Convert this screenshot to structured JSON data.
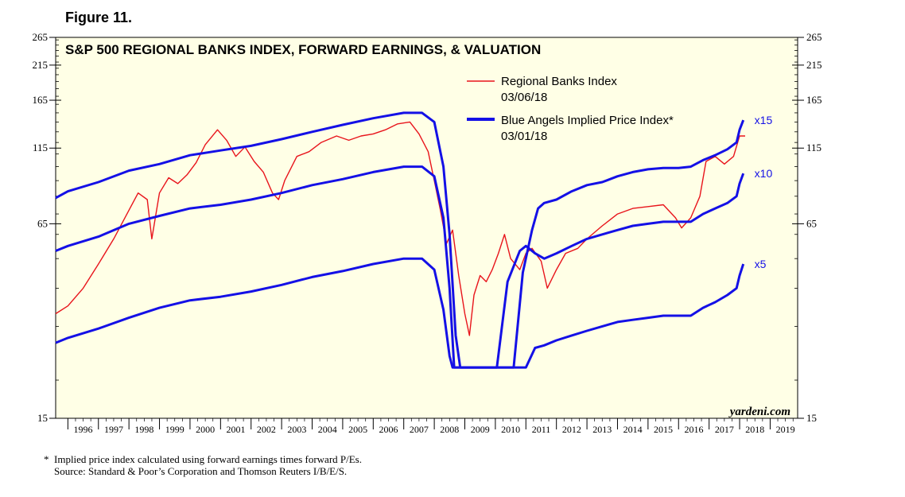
{
  "figure_label": "Figure 11.",
  "footnotes": {
    "asterisk_note": "*  Implied price index calculated using forward earnings times forward P/Es.",
    "source": "    Source: Standard & Poor’s Corporation and Thomson Reuters I/B/E/S."
  },
  "watermark": "yardeni.com",
  "colors": {
    "plot_bg": "#FFFFE6",
    "index": "#E8141B",
    "implied": "#1410E6"
  },
  "chart_data": {
    "type": "line",
    "title": "S&P 500 REGIONAL BANKS INDEX, FORWARD EARNINGS, & VALUATION",
    "y_scale": "log",
    "ylim": [
      15,
      265
    ],
    "xlim": [
      1995.6,
      2019.9
    ],
    "y_ticks": [
      15,
      65,
      115,
      165,
      215,
      265
    ],
    "x_labels": [
      "1996",
      "1997",
      "1998",
      "1999",
      "2000",
      "2001",
      "2002",
      "2003",
      "2004",
      "2005",
      "2006",
      "2007",
      "2008",
      "2009",
      "2010",
      "2011",
      "2012",
      "2013",
      "2014",
      "2015",
      "2016",
      "2017",
      "2018",
      "2019"
    ],
    "legend": {
      "placement": "top-center",
      "entries": [
        {
          "label": "Regional Banks Index",
          "date": "03/06/18"
        },
        {
          "label": "Blue Angels Implied Price Index*",
          "date": "03/01/18"
        }
      ]
    },
    "series": [
      {
        "name": "Regional Banks Index",
        "role": "index",
        "points": [
          [
            1995.6,
            33
          ],
          [
            1996.0,
            35
          ],
          [
            1996.5,
            40
          ],
          [
            1997.0,
            48
          ],
          [
            1997.5,
            58
          ],
          [
            1998.0,
            72
          ],
          [
            1998.3,
            82
          ],
          [
            1998.6,
            78
          ],
          [
            1998.75,
            58
          ],
          [
            1999.0,
            82
          ],
          [
            1999.3,
            92
          ],
          [
            1999.6,
            88
          ],
          [
            1999.9,
            94
          ],
          [
            2000.2,
            103
          ],
          [
            2000.5,
            118
          ],
          [
            2000.9,
            132
          ],
          [
            2001.2,
            122
          ],
          [
            2001.5,
            108
          ],
          [
            2001.8,
            116
          ],
          [
            2002.1,
            104
          ],
          [
            2002.4,
            96
          ],
          [
            2002.7,
            82
          ],
          [
            2002.9,
            78
          ],
          [
            2003.1,
            90
          ],
          [
            2003.5,
            108
          ],
          [
            2003.9,
            112
          ],
          [
            2004.3,
            120
          ],
          [
            2004.8,
            126
          ],
          [
            2005.2,
            122
          ],
          [
            2005.6,
            126
          ],
          [
            2006.0,
            128
          ],
          [
            2006.4,
            132
          ],
          [
            2006.8,
            138
          ],
          [
            2007.2,
            140
          ],
          [
            2007.5,
            128
          ],
          [
            2007.8,
            112
          ],
          [
            2008.0,
            90
          ],
          [
            2008.2,
            72
          ],
          [
            2008.4,
            56
          ],
          [
            2008.6,
            62
          ],
          [
            2008.8,
            44
          ],
          [
            2009.0,
            33
          ],
          [
            2009.15,
            28
          ],
          [
            2009.3,
            38
          ],
          [
            2009.5,
            44
          ],
          [
            2009.7,
            42
          ],
          [
            2009.9,
            46
          ],
          [
            2010.1,
            52
          ],
          [
            2010.3,
            60
          ],
          [
            2010.5,
            50
          ],
          [
            2010.8,
            46
          ],
          [
            2011.0,
            52
          ],
          [
            2011.2,
            54
          ],
          [
            2011.5,
            49
          ],
          [
            2011.7,
            40
          ],
          [
            2012.0,
            46
          ],
          [
            2012.3,
            52
          ],
          [
            2012.7,
            54
          ],
          [
            2013.0,
            58
          ],
          [
            2013.5,
            64
          ],
          [
            2014.0,
            70
          ],
          [
            2014.5,
            73
          ],
          [
            2015.0,
            74
          ],
          [
            2015.5,
            75
          ],
          [
            2015.9,
            68
          ],
          [
            2016.1,
            63
          ],
          [
            2016.4,
            68
          ],
          [
            2016.7,
            80
          ],
          [
            2016.9,
            104
          ],
          [
            2017.2,
            108
          ],
          [
            2017.5,
            102
          ],
          [
            2017.8,
            108
          ],
          [
            2018.0,
            126
          ],
          [
            2018.18,
            126
          ]
        ]
      },
      {
        "name": "x15",
        "role": "implied",
        "points": [
          [
            1995.6,
            79
          ],
          [
            1996.0,
            83
          ],
          [
            1997.0,
            89
          ],
          [
            1998.0,
            97
          ],
          [
            1999.0,
            102
          ],
          [
            2000.0,
            109
          ],
          [
            2001.0,
            113
          ],
          [
            2002.0,
            117
          ],
          [
            2003.0,
            123
          ],
          [
            2004.0,
            130
          ],
          [
            2005.0,
            137
          ],
          [
            2006.0,
            144
          ],
          [
            2007.0,
            150
          ],
          [
            2007.6,
            150
          ],
          [
            2008.0,
            140
          ],
          [
            2008.3,
            100
          ],
          [
            2008.5,
            60
          ],
          [
            2008.7,
            28
          ],
          [
            2008.85,
            22
          ],
          [
            2010.6,
            22
          ],
          [
            2010.9,
            45
          ],
          [
            2011.2,
            62
          ],
          [
            2011.4,
            73
          ],
          [
            2011.6,
            76
          ],
          [
            2012.0,
            78
          ],
          [
            2012.5,
            83
          ],
          [
            2013.0,
            87
          ],
          [
            2013.5,
            89
          ],
          [
            2014.0,
            93
          ],
          [
            2014.5,
            96
          ],
          [
            2015.0,
            98
          ],
          [
            2015.5,
            99
          ],
          [
            2016.0,
            99
          ],
          [
            2016.4,
            100
          ],
          [
            2016.8,
            105
          ],
          [
            2017.2,
            109
          ],
          [
            2017.6,
            114
          ],
          [
            2017.9,
            120
          ],
          [
            2018.0,
            132
          ],
          [
            2018.12,
            142
          ]
        ]
      },
      {
        "name": "x10",
        "role": "implied",
        "points": [
          [
            1995.6,
            53
          ],
          [
            1996.0,
            55
          ],
          [
            1997.0,
            59
          ],
          [
            1998.0,
            65
          ],
          [
            1999.0,
            69
          ],
          [
            2000.0,
            73
          ],
          [
            2001.0,
            75
          ],
          [
            2002.0,
            78
          ],
          [
            2003.0,
            82
          ],
          [
            2004.0,
            87
          ],
          [
            2005.0,
            91
          ],
          [
            2006.0,
            96
          ],
          [
            2007.0,
            100
          ],
          [
            2007.6,
            100
          ],
          [
            2008.0,
            93
          ],
          [
            2008.3,
            68
          ],
          [
            2008.5,
            40
          ],
          [
            2008.65,
            22
          ],
          [
            2010.05,
            22
          ],
          [
            2010.4,
            42
          ],
          [
            2010.8,
            53
          ],
          [
            2011.0,
            55
          ],
          [
            2011.3,
            52
          ],
          [
            2011.6,
            50
          ],
          [
            2012.0,
            52
          ],
          [
            2012.5,
            55
          ],
          [
            2013.0,
            58
          ],
          [
            2013.5,
            60
          ],
          [
            2014.0,
            62
          ],
          [
            2014.5,
            64
          ],
          [
            2015.0,
            65
          ],
          [
            2015.5,
            66
          ],
          [
            2016.0,
            66
          ],
          [
            2016.4,
            66
          ],
          [
            2016.8,
            70
          ],
          [
            2017.2,
            73
          ],
          [
            2017.6,
            76
          ],
          [
            2017.9,
            80
          ],
          [
            2018.0,
            88
          ],
          [
            2018.12,
            95
          ]
        ]
      },
      {
        "name": "x5",
        "role": "implied",
        "points": [
          [
            1995.6,
            26.5
          ],
          [
            1996.0,
            27.5
          ],
          [
            1997.0,
            29.5
          ],
          [
            1998.0,
            32
          ],
          [
            1999.0,
            34.5
          ],
          [
            2000.0,
            36.5
          ],
          [
            2001.0,
            37.5
          ],
          [
            2002.0,
            39
          ],
          [
            2003.0,
            41
          ],
          [
            2004.0,
            43.5
          ],
          [
            2005.0,
            45.5
          ],
          [
            2006.0,
            48
          ],
          [
            2007.0,
            50
          ],
          [
            2007.6,
            50
          ],
          [
            2008.0,
            46
          ],
          [
            2008.3,
            34
          ],
          [
            2008.5,
            24
          ],
          [
            2008.6,
            22
          ],
          [
            2011.0,
            22
          ],
          [
            2011.3,
            25.5
          ],
          [
            2011.6,
            26
          ],
          [
            2012.0,
            27
          ],
          [
            2012.5,
            28
          ],
          [
            2013.0,
            29
          ],
          [
            2013.5,
            30
          ],
          [
            2014.0,
            31
          ],
          [
            2014.5,
            31.5
          ],
          [
            2015.0,
            32
          ],
          [
            2015.5,
            32.5
          ],
          [
            2016.0,
            32.5
          ],
          [
            2016.4,
            32.5
          ],
          [
            2016.8,
            34.5
          ],
          [
            2017.2,
            36
          ],
          [
            2017.6,
            38
          ],
          [
            2017.9,
            40
          ],
          [
            2018.0,
            44
          ],
          [
            2018.12,
            48
          ]
        ]
      }
    ]
  }
}
